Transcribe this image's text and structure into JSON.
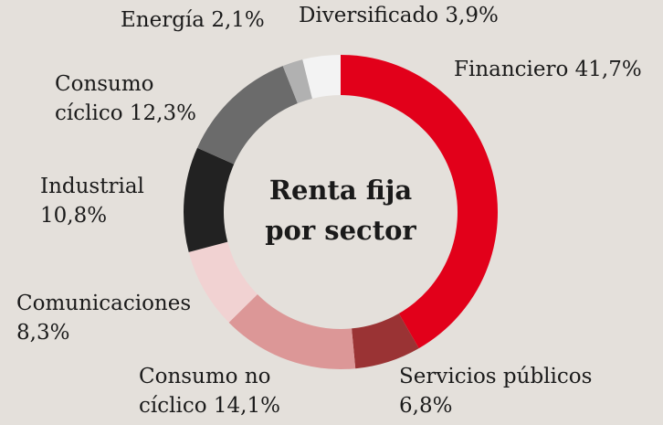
{
  "chart_data": {
    "type": "donut",
    "title": "Renta fija por sector",
    "categories": [
      "Financiero",
      "Servicios públicos",
      "Consumo no cíclico",
      "Comunicaciones",
      "Industrial",
      "Consumo cíclico",
      "Energía",
      "Diversificado"
    ],
    "values": [
      41.7,
      6.8,
      14.1,
      8.3,
      10.8,
      12.3,
      2.1,
      3.9
    ],
    "value_labels": [
      "41,7%",
      "6,8%",
      "14,1%",
      "8,3%",
      "10,8%",
      "12,3%",
      "2,1%",
      "3,9%"
    ],
    "colors": [
      "#e2001a",
      "#9a3334",
      "#dc9797",
      "#f1d2d2",
      "#222222",
      "#6b6b6b",
      "#b1b1b1",
      "#f3f3f3"
    ]
  }
}
